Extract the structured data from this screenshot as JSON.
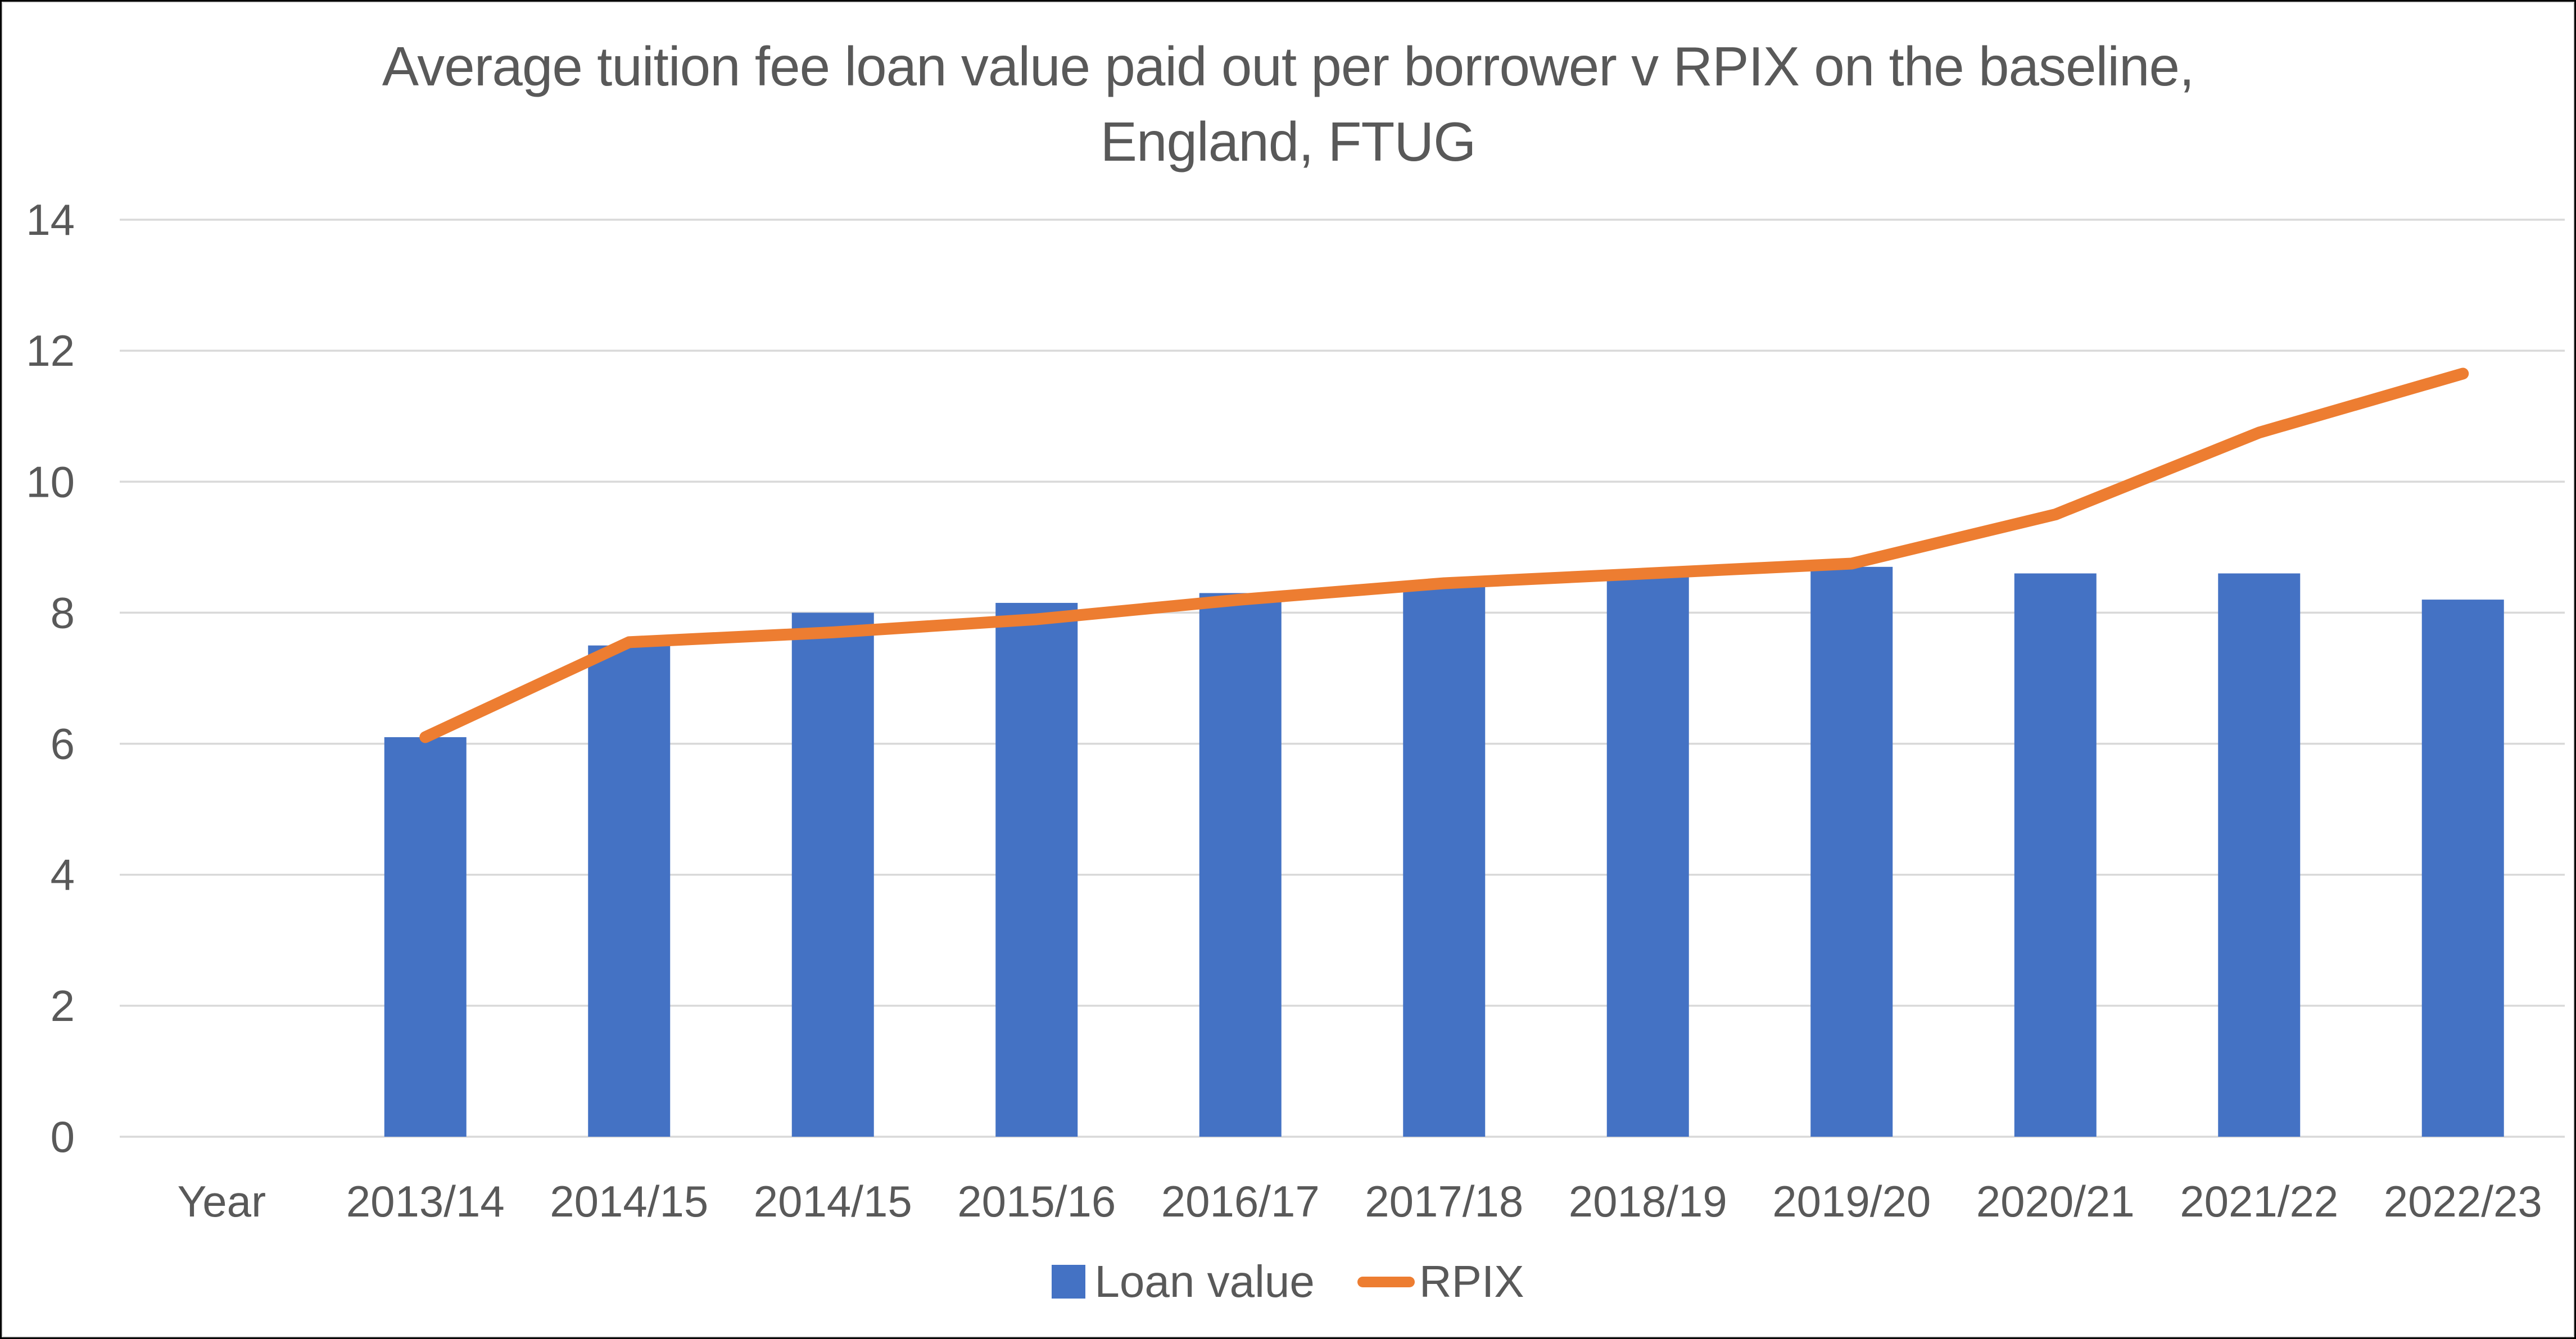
{
  "header": {
    "title_line1": "Average tuition fee loan value paid out per borrower v RPIX on the baseline,",
    "title_line2": "England, FTUG"
  },
  "colors": {
    "bar_blue": "#4472C4",
    "line_orange": "#ED7D31",
    "text_gray": "#595959",
    "gridline_gray": "#D9D9D9",
    "border_black": "#000000",
    "background": "#FFFFFF"
  },
  "chart_data": {
    "type": "bar",
    "title": "Average tuition fee loan value paid out per borrower v RPIX on the baseline, England, FTUG",
    "categories": [
      "Year",
      "2013/14",
      "2014/15",
      "2014/15",
      "2015/16",
      "2016/17",
      "2017/18",
      "2018/19",
      "2019/20",
      "2020/21",
      "2021/22",
      "2022/23"
    ],
    "series": [
      {
        "name": "Loan value",
        "type": "bar",
        "color": "#4472C4",
        "values": [
          null,
          6.1,
          7.5,
          8.0,
          8.15,
          8.3,
          8.4,
          8.55,
          8.7,
          8.6,
          8.6,
          8.2
        ]
      },
      {
        "name": "RPIX",
        "type": "line",
        "color": "#ED7D31",
        "values": [
          null,
          6.1,
          7.55,
          7.7,
          7.9,
          8.2,
          8.45,
          8.6,
          8.75,
          9.5,
          10.75,
          11.65
        ]
      }
    ],
    "xlabel": "",
    "ylabel": "",
    "y_axis": {
      "min": 0,
      "max": 14,
      "step": 2,
      "tick_labels": [
        "0",
        "2",
        "4",
        "6",
        "8",
        "10",
        "12",
        "14"
      ]
    },
    "grid": true,
    "legend_position": "bottom"
  }
}
